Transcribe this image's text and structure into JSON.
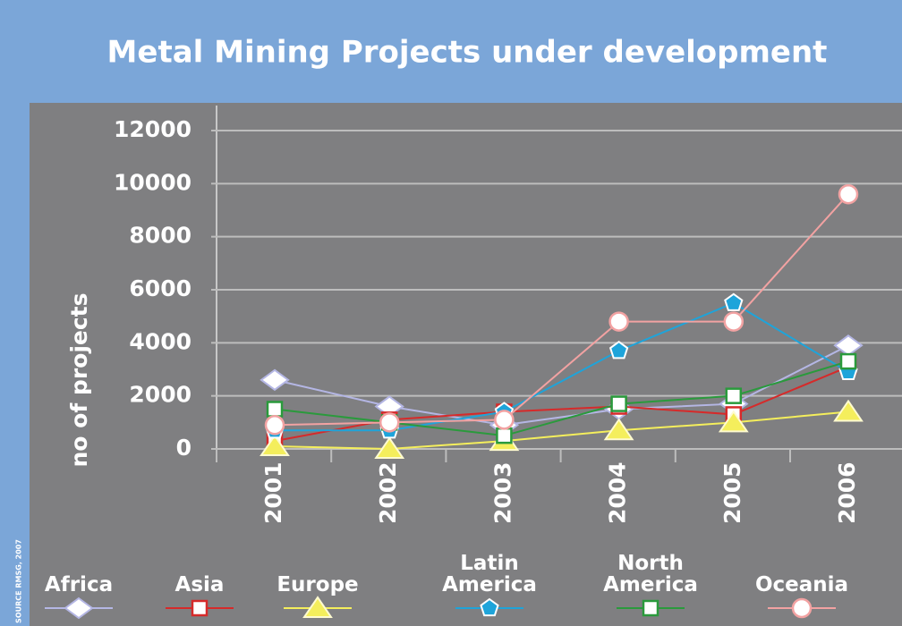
{
  "chart_data": {
    "type": "line",
    "title": "Metal Mining Projects under development",
    "y_label": "no of projects",
    "source": "SOURCE RMSG, 2007",
    "categories": [
      "2001",
      "2002",
      "2003",
      "2004",
      "2005",
      "2006"
    ],
    "ylim": [
      0,
      12000
    ],
    "yticks": [
      0,
      2000,
      4000,
      6000,
      8000,
      10000,
      12000
    ],
    "grid": true,
    "legend": "bottom",
    "series": [
      {
        "name": "Africa",
        "color": "#b4b6e4",
        "marker": "diamond",
        "values": [
          2600,
          1600,
          900,
          1500,
          1700,
          3900
        ]
      },
      {
        "name": "Asia",
        "color": "#d62a2a",
        "marker": "square",
        "values": [
          300,
          1100,
          1400,
          1600,
          1300,
          3100
        ]
      },
      {
        "name": "Europe",
        "color": "#f4ee5c",
        "marker": "triangle",
        "values": [
          100,
          0,
          300,
          700,
          1000,
          1400
        ]
      },
      {
        "name": "Latin America",
        "color": "#1ea4da",
        "marker": "pentagon",
        "values": [
          700,
          700,
          1400,
          3700,
          5500,
          2900
        ]
      },
      {
        "name": "North America",
        "color": "#2a9a3c",
        "marker": "square",
        "values": [
          1500,
          1000,
          500,
          1700,
          2000,
          3300
        ]
      },
      {
        "name": "Oceania",
        "color": "#f2a2a2",
        "marker": "circle",
        "values": [
          900,
          1000,
          1100,
          4800,
          4800,
          9600
        ]
      }
    ]
  }
}
